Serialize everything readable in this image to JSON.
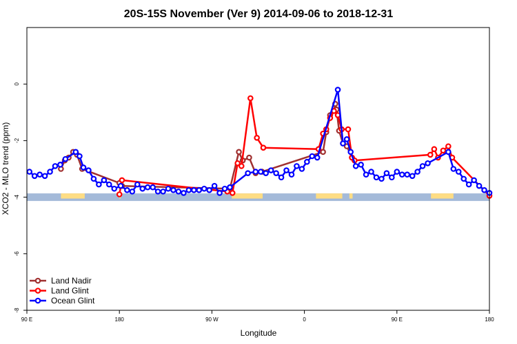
{
  "chart_data": {
    "type": "line",
    "title": "20S-15S November (Ver 9)   2014-09-06 to 2018-12-31",
    "xlabel": "Longitude",
    "ylabel": "XCO2 - MLO trend (ppm)",
    "xlim": [
      0,
      360
    ],
    "ylim": [
      -8,
      2
    ],
    "x_ticks": [
      {
        "value": 0,
        "label": "90 E"
      },
      {
        "value": 72,
        "label": "180"
      },
      {
        "value": 144,
        "label": "90 W"
      },
      {
        "value": 216,
        "label": "0"
      },
      {
        "value": 288,
        "label": "90 E"
      },
      {
        "value": 360,
        "label": "180"
      }
    ],
    "y_ticks": [
      -8,
      -6,
      -4,
      -2,
      0
    ],
    "grid": false,
    "legend_position": "bottom-left",
    "surface_band": {
      "y": -4,
      "ocean_color": "#a4bad9",
      "land_color": "#fedd84",
      "land_segments": [
        [
          26.5,
          45
        ],
        [
          72,
          73
        ],
        [
          159.5,
          183.5
        ],
        [
          225,
          245.5
        ],
        [
          251,
          253.5
        ],
        [
          314.5,
          332
        ]
      ]
    },
    "series": [
      {
        "name": "Land Nadir",
        "color": "#a03030",
        "points": [
          [
            26.5,
            -3.0
          ],
          [
            29.5,
            -2.7
          ],
          [
            32.5,
            -2.6
          ],
          [
            36,
            -2.4
          ],
          [
            39,
            -2.5
          ],
          [
            43,
            -3.0
          ],
          [
            72,
            -3.5
          ],
          [
            74,
            -3.6
          ],
          [
            158,
            -3.7
          ],
          [
            165,
            -2.4
          ],
          [
            168,
            -2.7
          ],
          [
            173,
            -2.6
          ],
          [
            178,
            -3.15
          ],
          [
            183,
            -3.1
          ],
          [
            230.5,
            -2.4
          ],
          [
            233,
            -1.7
          ],
          [
            236,
            -1.1
          ],
          [
            239,
            -0.95
          ],
          [
            240,
            -0.7
          ],
          [
            241,
            -0.9
          ],
          [
            243,
            -1.65
          ],
          [
            246,
            -2.1
          ],
          [
            249,
            -2.2
          ],
          [
            253,
            -2.6
          ]
        ]
      },
      {
        "name": "Land Glint",
        "color": "#ff0000",
        "points": [
          [
            72,
            -3.9
          ],
          [
            74,
            -3.4
          ],
          [
            156,
            -3.8
          ],
          [
            160,
            -3.85
          ],
          [
            164,
            -2.8
          ],
          [
            167,
            -2.9
          ],
          [
            174,
            -0.5
          ],
          [
            179,
            -1.9
          ],
          [
            184,
            -2.25
          ],
          [
            227,
            -2.3
          ],
          [
            230.5,
            -1.75
          ],
          [
            233,
            -1.6
          ],
          [
            236,
            -1.2
          ],
          [
            239,
            -0.95
          ],
          [
            242,
            -1.1
          ],
          [
            245,
            -1.6
          ],
          [
            250,
            -1.6
          ],
          [
            253,
            -2.6
          ],
          [
            255,
            -2.7
          ],
          [
            314,
            -2.5
          ],
          [
            317,
            -2.3
          ],
          [
            320,
            -2.6
          ],
          [
            324,
            -2.35
          ],
          [
            328,
            -2.2
          ],
          [
            331,
            -2.6
          ],
          [
            360,
            -3.95
          ]
        ]
      },
      {
        "name": "Ocean Glint",
        "color": "#0000ff",
        "points": [
          [
            2,
            -3.1
          ],
          [
            6,
            -3.25
          ],
          [
            10,
            -3.2
          ],
          [
            14,
            -3.25
          ],
          [
            18,
            -3.1
          ],
          [
            22,
            -2.9
          ],
          [
            26,
            -2.85
          ],
          [
            30,
            -2.65
          ],
          [
            38,
            -2.4
          ],
          [
            41,
            -2.55
          ],
          [
            44,
            -2.95
          ],
          [
            48,
            -3.05
          ],
          [
            52,
            -3.35
          ],
          [
            56,
            -3.55
          ],
          [
            60,
            -3.4
          ],
          [
            64,
            -3.55
          ],
          [
            68,
            -3.7
          ],
          [
            73,
            -3.6
          ],
          [
            78,
            -3.75
          ],
          [
            82,
            -3.8
          ],
          [
            86,
            -3.55
          ],
          [
            90,
            -3.7
          ],
          [
            94,
            -3.65
          ],
          [
            98,
            -3.65
          ],
          [
            102,
            -3.8
          ],
          [
            106,
            -3.8
          ],
          [
            110,
            -3.7
          ],
          [
            114,
            -3.75
          ],
          [
            118,
            -3.8
          ],
          [
            122,
            -3.85
          ],
          [
            126,
            -3.75
          ],
          [
            130,
            -3.75
          ],
          [
            134,
            -3.75
          ],
          [
            138,
            -3.7
          ],
          [
            142,
            -3.75
          ],
          [
            146,
            -3.6
          ],
          [
            150,
            -3.85
          ],
          [
            154,
            -3.7
          ],
          [
            158,
            -3.65
          ],
          [
            172,
            -3.15
          ],
          [
            178,
            -3.1
          ],
          [
            182,
            -3.1
          ],
          [
            186,
            -3.15
          ],
          [
            190,
            -3.05
          ],
          [
            194,
            -3.15
          ],
          [
            198,
            -3.3
          ],
          [
            202,
            -3.05
          ],
          [
            206,
            -3.2
          ],
          [
            210,
            -2.9
          ],
          [
            214,
            -3.0
          ],
          [
            218,
            -2.75
          ],
          [
            222,
            -2.55
          ],
          [
            226,
            -2.6
          ],
          [
            242,
            -0.2
          ],
          [
            246,
            -2.1
          ],
          [
            249,
            -1.95
          ],
          [
            252,
            -2.4
          ],
          [
            256,
            -2.9
          ],
          [
            260,
            -2.85
          ],
          [
            264,
            -3.2
          ],
          [
            268,
            -3.1
          ],
          [
            272,
            -3.3
          ],
          [
            276,
            -3.35
          ],
          [
            280,
            -3.15
          ],
          [
            284,
            -3.3
          ],
          [
            288,
            -3.1
          ],
          [
            292,
            -3.2
          ],
          [
            296,
            -3.2
          ],
          [
            300,
            -3.25
          ],
          [
            304,
            -3.1
          ],
          [
            308,
            -2.9
          ],
          [
            312,
            -2.8
          ],
          [
            328,
            -2.4
          ],
          [
            332,
            -3.0
          ],
          [
            336,
            -3.1
          ],
          [
            340,
            -3.35
          ],
          [
            344,
            -3.55
          ],
          [
            348,
            -3.4
          ],
          [
            352,
            -3.6
          ],
          [
            356,
            -3.75
          ],
          [
            360,
            -3.85
          ]
        ]
      }
    ]
  }
}
